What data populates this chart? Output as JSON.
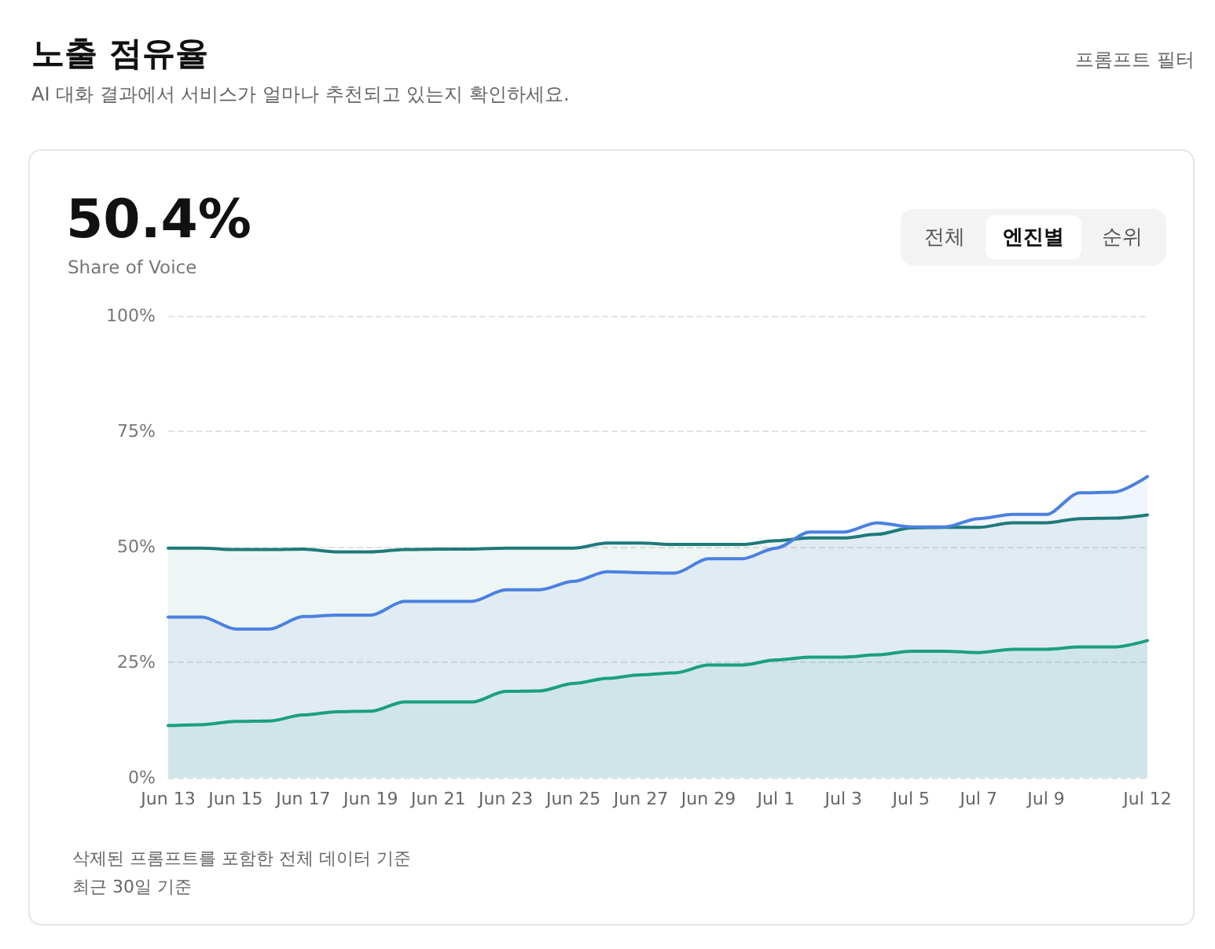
{
  "chart_data": {
    "type": "area",
    "title": "노출 점유율",
    "subtitle": "AI 대화 결과에서 서비스가 얼마나 추천되고 있는지 확인하세요.",
    "annotations": [
      "프롬프트 필터",
      "50.4%",
      "Share of Voice",
      "전체",
      "엔진별",
      "순위",
      "삭제된 프롬프트를 포함한 전체 데이터 기준",
      "최근 30일 기준"
    ],
    "categories": [
      "Jun 13",
      null,
      "Jun 15",
      null,
      "Jun 17",
      null,
      "Jun 19",
      null,
      "Jun 21",
      null,
      "Jun 23",
      null,
      "Jun 25",
      null,
      "Jun 27",
      null,
      "Jun 29",
      null,
      "Jul 1",
      null,
      "Jul 3",
      null,
      "Jul 5",
      null,
      "Jul 7",
      null,
      "Jul 9",
      null,
      null,
      "Jul 12"
    ],
    "series": [
      {
        "color": "#1f7a7a",
        "values": [
          49.7,
          49.7,
          49.4,
          49.4,
          49.5,
          48.9,
          48.9,
          49.4,
          49.5,
          49.5,
          49.7,
          49.7,
          49.7,
          50.8,
          50.8,
          50.5,
          50.5,
          50.5,
          51.3,
          51.9,
          51.9,
          52.7,
          54.1,
          54.2,
          54.2,
          55.2,
          55.2,
          56.1,
          56.2,
          56.9
        ]
      },
      {
        "color": "#4a80e0",
        "values": [
          34.8,
          34.8,
          32.2,
          32.2,
          34.9,
          35.2,
          35.2,
          38.2,
          38.2,
          38.2,
          40.7,
          40.7,
          42.5,
          44.6,
          44.4,
          44.3,
          47.4,
          47.4,
          49.7,
          53.2,
          53.2,
          55.2,
          54.3,
          54.3,
          56.1,
          57.0,
          57.0,
          61.7,
          61.8,
          65.2
        ]
      },
      {
        "color": "#1aa07f",
        "values": [
          11.3,
          11.5,
          12.2,
          12.3,
          13.6,
          14.3,
          14.4,
          16.4,
          16.4,
          16.4,
          18.7,
          18.8,
          20.4,
          21.5,
          22.3,
          22.7,
          24.4,
          24.4,
          25.5,
          26.1,
          26.1,
          26.6,
          27.4,
          27.4,
          27.1,
          27.8,
          27.8,
          28.3,
          28.3,
          29.7
        ]
      }
    ],
    "ylim": [
      0,
      100
    ],
    "yticks": [
      {
        "value": 0,
        "label": "0%"
      },
      {
        "value": 25,
        "label": "25%"
      },
      {
        "value": 50,
        "label": "50%"
      },
      {
        "value": 75,
        "label": "75%"
      },
      {
        "value": 100,
        "label": "100%"
      }
    ],
    "grid": "y",
    "marker": "none",
    "line_style": "solid"
  }
}
